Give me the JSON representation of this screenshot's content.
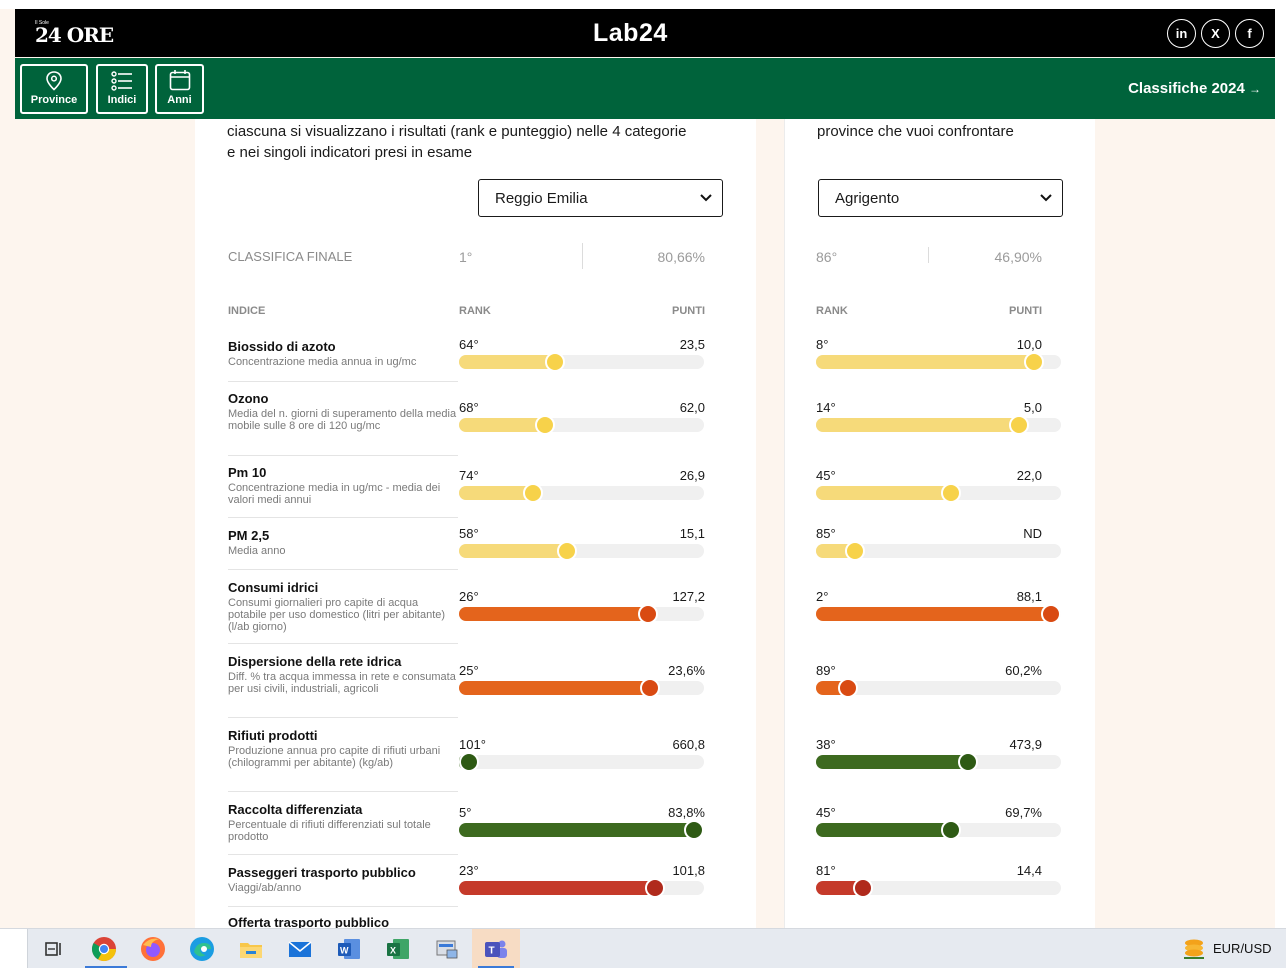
{
  "topbar": {
    "logo_small": "Il Sole",
    "logo_main": "24 ORE",
    "brand": "Lab24",
    "social": [
      "in",
      "X",
      "f"
    ]
  },
  "navbar": {
    "buttons": [
      {
        "label": "Province",
        "icon": "map-pin-icon"
      },
      {
        "label": "Indici",
        "icon": "list-icon"
      },
      {
        "label": "Anni",
        "icon": "calendar-icon"
      }
    ],
    "classifiche": "Classifiche 2024"
  },
  "left": {
    "intro_line1": "ciascuna si visualizzano i risultati (rank e punteggio) nelle 4 categorie",
    "intro_line2": "e nei singoli indicatori presi in esame",
    "province": "Reggio Emilia",
    "classifica_label": "CLASSIFICA FINALE",
    "final_rank": "1°",
    "final_pct": "80,66%",
    "col_indice": "INDICE",
    "col_rank": "RANK",
    "col_punti": "PUNTI"
  },
  "right": {
    "intro_line1": "province che vuoi confrontare",
    "province": "Agrigento",
    "final_rank": "86°",
    "final_pct": "46,90%",
    "col_rank": "RANK",
    "col_punti": "PUNTI"
  },
  "colors": {
    "yellow": "#f6da7a",
    "orange": "#e4641c",
    "green": "#3d6a1f",
    "red": "#c53a2a",
    "knob_yellow": "#f7d24a",
    "knob_orange": "#d94a12",
    "knob_green": "#2e5a14",
    "knob_red": "#b02a1c"
  },
  "indicators": [
    {
      "name": "Biossido di azoto",
      "desc": "Concentrazione media annua in ug/mc",
      "color": "yellow",
      "left": {
        "rank": "64°",
        "points": "23,5",
        "level": 0.39
      },
      "right": {
        "rank": "8°",
        "points": "10,0",
        "level": 0.89
      }
    },
    {
      "name": "Ozono",
      "desc": "Media del n. giorni di superamento della media mobile sulle 8 ore di 120 ug/mc",
      "color": "yellow",
      "left": {
        "rank": "68°",
        "points": "62,0",
        "level": 0.35
      },
      "right": {
        "rank": "14°",
        "points": "5,0",
        "level": 0.83
      }
    },
    {
      "name": "Pm 10",
      "desc": "Concentrazione media in ug/mc - media dei valori medi annui",
      "color": "yellow",
      "left": {
        "rank": "74°",
        "points": "26,9",
        "level": 0.3
      },
      "right": {
        "rank": "45°",
        "points": "22,0",
        "level": 0.55
      }
    },
    {
      "name": "PM 2,5",
      "desc": "Media anno",
      "color": "yellow",
      "left": {
        "rank": "58°",
        "points": "15,1",
        "level": 0.44
      },
      "right": {
        "rank": "85°",
        "points": "ND",
        "level": 0.16
      }
    },
    {
      "name": "Consumi idrici",
      "desc": "Consumi giornalieri pro capite di acqua potabile per uso domestico (litri per abitante) (l/ab giorno)",
      "color": "orange",
      "left": {
        "rank": "26°",
        "points": "127,2",
        "level": 0.77
      },
      "right": {
        "rank": "2°",
        "points": "88,1",
        "level": 0.96
      }
    },
    {
      "name": "Dispersione della rete idrica",
      "desc": "Diff. % tra acqua immessa in rete e consumata per usi civili, industriali, agricoli",
      "color": "orange",
      "left": {
        "rank": "25°",
        "points": "23,6%",
        "level": 0.78
      },
      "right": {
        "rank": "89°",
        "points": "60,2%",
        "level": 0.13
      }
    },
    {
      "name": "Rifiuti prodotti",
      "desc": "Produzione annua pro capite di rifiuti urbani (chilogrammi per abitante) (kg/ab)",
      "color": "green",
      "left": {
        "rank": "101°",
        "points": "660,8",
        "level": 0.02
      },
      "right": {
        "rank": "38°",
        "points": "473,9",
        "level": 0.62
      }
    },
    {
      "name": "Raccolta differenziata",
      "desc": "Percentuale di rifiuti differenziati sul totale prodotto",
      "color": "green",
      "left": {
        "rank": "5°",
        "points": "83,8%",
        "level": 0.96
      },
      "right": {
        "rank": "45°",
        "points": "69,7%",
        "level": 0.55
      }
    },
    {
      "name": "Passeggeri trasporto pubblico",
      "desc": "Viaggi/ab/anno",
      "color": "red",
      "left": {
        "rank": "23°",
        "points": "101,8",
        "level": 0.8
      },
      "right": {
        "rank": "81°",
        "points": "14,4",
        "level": 0.19
      }
    },
    {
      "name": "Offerta trasporto pubblico",
      "desc": "",
      "color": "red",
      "left": {
        "rank": "",
        "points": "",
        "level": 0
      },
      "right": {
        "rank": "",
        "points": "",
        "level": 0
      }
    }
  ],
  "taskbar": {
    "apps": [
      "task-view-icon",
      "chrome-icon",
      "firefox-icon",
      "edge-icon",
      "file-explorer-icon",
      "mail-icon",
      "word-icon",
      "excel-icon",
      "control-panel-icon",
      "teams-icon"
    ],
    "ticker_label": "EUR/USD"
  }
}
